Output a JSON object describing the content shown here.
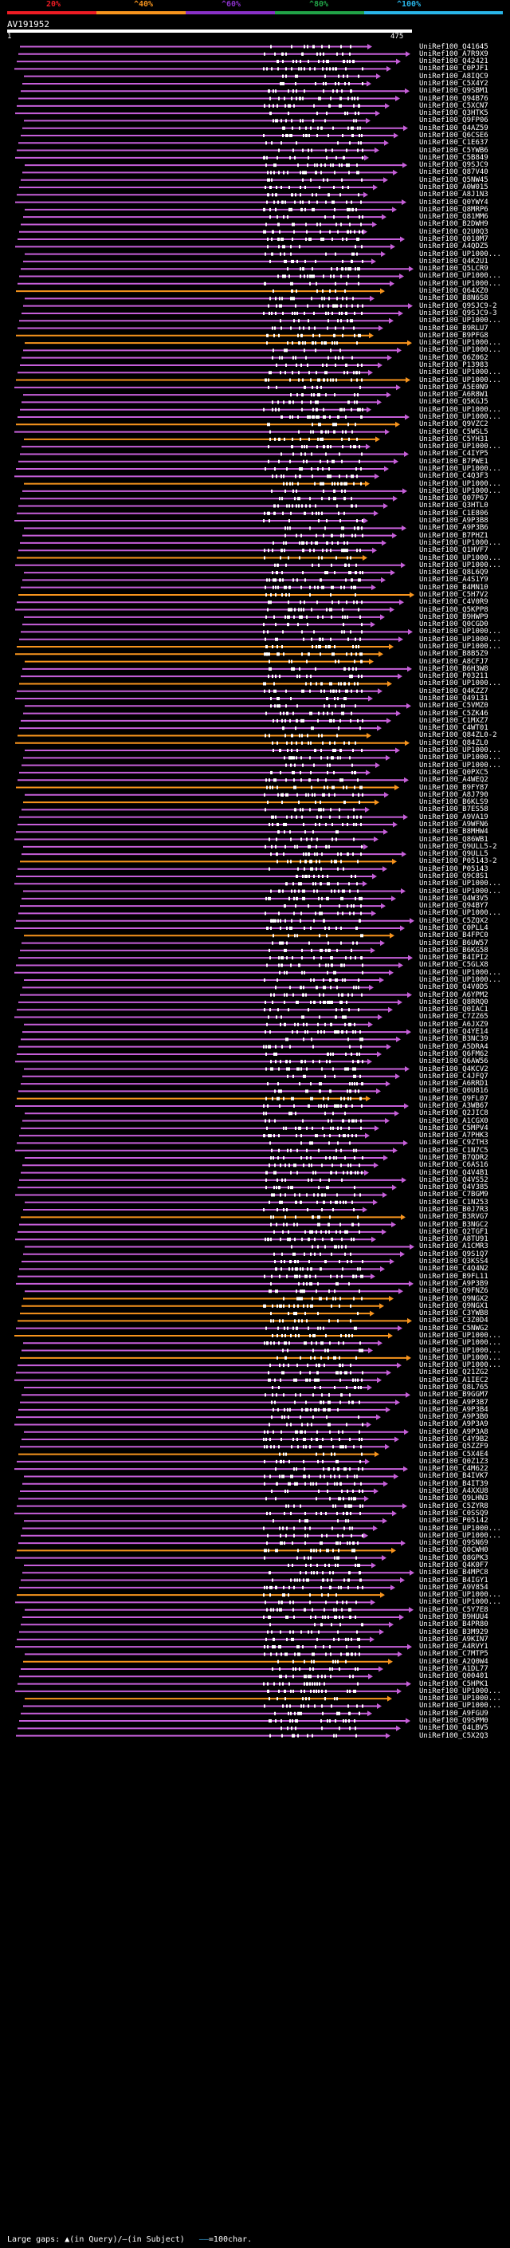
{
  "scale": {
    "labels": [
      "20%",
      "^40%",
      "^60%",
      "^80%",
      "^100%"
    ],
    "colors": [
      "#ee1c24",
      "#f7941d",
      "#8a31c8",
      "#21a347",
      "#29b5e8"
    ]
  },
  "query": {
    "id": "AV191952",
    "start": "1",
    "end": "475"
  },
  "hit_colors": {
    "purple": "#c65fd9",
    "orange": "#f7941d",
    "insert": "#ffffff"
  },
  "hits": [
    {
      "name": "UniRef100_Q41645",
      "color": "purple"
    },
    {
      "name": "UniRef100_A7R9X9",
      "color": "purple"
    },
    {
      "name": "UniRef100_Q42421",
      "color": "purple"
    },
    {
      "name": "UniRef100_C0PJF1",
      "color": "purple"
    },
    {
      "name": "UniRef100_A8IQC9",
      "color": "purple"
    },
    {
      "name": "UniRef100_C5X4Y2",
      "color": "purple"
    },
    {
      "name": "UniRef100_Q9SBM1",
      "color": "purple"
    },
    {
      "name": "UniRef100_Q94B76",
      "color": "purple"
    },
    {
      "name": "UniRef100_C5XCN7",
      "color": "purple"
    },
    {
      "name": "UniRef100_Q3HTK5",
      "color": "purple"
    },
    {
      "name": "UniRef100_Q9FP06",
      "color": "purple"
    },
    {
      "name": "UniRef100_Q4AZ59",
      "color": "purple"
    },
    {
      "name": "UniRef100_Q6CSE6",
      "color": "purple"
    },
    {
      "name": "UniRef100_C1E637",
      "color": "purple"
    },
    {
      "name": "UniRef100_C5YWB6",
      "color": "purple"
    },
    {
      "name": "UniRef100_C5B849",
      "color": "purple"
    },
    {
      "name": "UniRef100_Q9SJC9",
      "color": "purple"
    },
    {
      "name": "UniRef100_Q87V40",
      "color": "purple"
    },
    {
      "name": "UniRef100_Q5NW45",
      "color": "purple"
    },
    {
      "name": "UniRef100_A0W015",
      "color": "purple"
    },
    {
      "name": "UniRef100_A8J1N3",
      "color": "purple"
    },
    {
      "name": "UniRef100_Q0YWY4",
      "color": "purple"
    },
    {
      "name": "UniRef100_Q8MRP6",
      "color": "purple"
    },
    {
      "name": "UniRef100_Q81MM6",
      "color": "purple"
    },
    {
      "name": "UniRef100_B2DWH9",
      "color": "purple"
    },
    {
      "name": "UniRef100_Q2U0Q3",
      "color": "purple"
    },
    {
      "name": "UniRef100_Q010M7",
      "color": "purple"
    },
    {
      "name": "UniRef100_A4QDZ5",
      "color": "purple"
    },
    {
      "name": "UniRef100_UP1000...",
      "color": "purple"
    },
    {
      "name": "UniRef100_Q4K2U1",
      "color": "purple"
    },
    {
      "name": "UniRef100_Q5LCR9",
      "color": "purple"
    },
    {
      "name": "UniRef100_UP1000...",
      "color": "purple"
    },
    {
      "name": "UniRef100_UP1000...",
      "color": "purple"
    },
    {
      "name": "UniRef100_Q64XZ0",
      "color": "orange"
    },
    {
      "name": "UniRef100_B8N6S8",
      "color": "purple"
    },
    {
      "name": "UniRef100_Q9SJC9-2",
      "color": "purple"
    },
    {
      "name": "UniRef100_Q9SJC9-3",
      "color": "purple"
    },
    {
      "name": "UniRef100_UP1000...",
      "color": "purple"
    },
    {
      "name": "UniRef100_B9RLU7",
      "color": "purple"
    },
    {
      "name": "UniRef100_B9PFG8",
      "color": "orange"
    },
    {
      "name": "UniRef100_UP1000...",
      "color": "orange"
    },
    {
      "name": "UniRef100_UP1000...",
      "color": "purple"
    },
    {
      "name": "UniRef100_Q6Z062",
      "color": "purple"
    },
    {
      "name": "UniRef100_P13983",
      "color": "purple"
    },
    {
      "name": "UniRef100_UP1000...",
      "color": "purple"
    },
    {
      "name": "UniRef100_UP1000...",
      "color": "orange"
    },
    {
      "name": "UniRef100_A5E0N9",
      "color": "purple"
    },
    {
      "name": "UniRef100_A6R8W1",
      "color": "purple"
    },
    {
      "name": "UniRef100_Q5KGJ5",
      "color": "purple"
    },
    {
      "name": "UniRef100_UP1000...",
      "color": "purple"
    },
    {
      "name": "UniRef100_UP1000...",
      "color": "purple"
    },
    {
      "name": "UniRef100_Q9VZC2",
      "color": "orange"
    },
    {
      "name": "UniRef100_C5WSL5",
      "color": "purple"
    },
    {
      "name": "UniRef100_C5YH31",
      "color": "orange"
    },
    {
      "name": "UniRef100_UP1000...",
      "color": "purple"
    },
    {
      "name": "UniRef100_C4IYP5",
      "color": "purple"
    },
    {
      "name": "UniRef100_B7PWE1",
      "color": "purple"
    },
    {
      "name": "UniRef100_UP1000...",
      "color": "purple"
    },
    {
      "name": "UniRef100_C4Q3F3",
      "color": "purple"
    },
    {
      "name": "UniRef100_UP1000...",
      "color": "orange"
    },
    {
      "name": "UniRef100_UP1000...",
      "color": "purple"
    },
    {
      "name": "UniRef100_Q07P67",
      "color": "purple"
    },
    {
      "name": "UniRef100_Q3HTL0",
      "color": "purple"
    },
    {
      "name": "UniRef100_C1E806",
      "color": "purple"
    },
    {
      "name": "UniRef100_A9P3B8",
      "color": "purple"
    },
    {
      "name": "UniRef100_A9P3B6",
      "color": "purple"
    },
    {
      "name": "UniRef100_B7PHZ1",
      "color": "purple"
    },
    {
      "name": "UniRef100_UP1000...",
      "color": "purple"
    },
    {
      "name": "UniRef100_Q1HVF7",
      "color": "purple"
    },
    {
      "name": "UniRef100_UP1000...",
      "color": "orange"
    },
    {
      "name": "UniRef100_UP1000...",
      "color": "purple"
    },
    {
      "name": "UniRef100_Q8L6Q9",
      "color": "purple"
    },
    {
      "name": "UniRef100_A4S1Y9",
      "color": "purple"
    },
    {
      "name": "UniRef100_B4MN10",
      "color": "purple"
    },
    {
      "name": "UniRef100_C5H7V2",
      "color": "orange"
    },
    {
      "name": "UniRef100_C4V0R9",
      "color": "purple"
    },
    {
      "name": "UniRef100_Q5KPP8",
      "color": "purple"
    },
    {
      "name": "UniRef100_B9HWP9",
      "color": "purple"
    },
    {
      "name": "UniRef100_Q0CGD0",
      "color": "purple"
    },
    {
      "name": "UniRef100_UP1000...",
      "color": "purple"
    },
    {
      "name": "UniRef100_UP1000...",
      "color": "purple"
    },
    {
      "name": "UniRef100_UP1000...",
      "color": "orange"
    },
    {
      "name": "UniRef100_B8B5Z9",
      "color": "orange"
    },
    {
      "name": "UniRef100_A8CFJ7",
      "color": "orange"
    },
    {
      "name": "UniRef100_B6H3W8",
      "color": "purple"
    },
    {
      "name": "UniRef100_P03211",
      "color": "purple"
    },
    {
      "name": "UniRef100_UP1000...",
      "color": "orange"
    },
    {
      "name": "UniRef100_Q4KZZ7",
      "color": "purple"
    },
    {
      "name": "UniRef100_Q49131",
      "color": "purple"
    },
    {
      "name": "UniRef100_C5VMZ0",
      "color": "purple"
    },
    {
      "name": "UniRef100_C5ZK46",
      "color": "purple"
    },
    {
      "name": "UniRef100_C1MXZ7",
      "color": "purple"
    },
    {
      "name": "UniRef100_C4WT01",
      "color": "purple"
    },
    {
      "name": "UniRef100_Q84ZL0-2",
      "color": "orange"
    },
    {
      "name": "UniRef100_Q84ZL0",
      "color": "orange"
    },
    {
      "name": "UniRef100_UP1000...",
      "color": "purple"
    },
    {
      "name": "UniRef100_UP1000...",
      "color": "purple"
    },
    {
      "name": "UniRef100_UP1000...",
      "color": "purple"
    },
    {
      "name": "UniRef100_Q0PXC5",
      "color": "purple"
    },
    {
      "name": "UniRef100_A4WEQ2",
      "color": "purple"
    },
    {
      "name": "UniRef100_B9FY87",
      "color": "orange"
    },
    {
      "name": "UniRef100_A8J790",
      "color": "purple"
    },
    {
      "name": "UniRef100_B6KLS9",
      "color": "orange"
    },
    {
      "name": "UniRef100_B7ES58",
      "color": "purple"
    },
    {
      "name": "UniRef100_A9VA19",
      "color": "purple"
    },
    {
      "name": "UniRef100_A9WFN6",
      "color": "purple"
    },
    {
      "name": "UniRef100_B8MHW4",
      "color": "purple"
    },
    {
      "name": "UniRef100_Q86WB1",
      "color": "purple"
    },
    {
      "name": "UniRef100_Q9ULL5-2",
      "color": "purple"
    },
    {
      "name": "UniRef100_Q9ULL5",
      "color": "purple"
    },
    {
      "name": "UniRef100_P05143-2",
      "color": "orange"
    },
    {
      "name": "UniRef100_P05143",
      "color": "purple"
    },
    {
      "name": "UniRef100_Q9C8S1",
      "color": "purple"
    },
    {
      "name": "UniRef100_UP1000...",
      "color": "purple"
    },
    {
      "name": "UniRef100_UP1000...",
      "color": "purple"
    },
    {
      "name": "UniRef100_Q4W3V5",
      "color": "purple"
    },
    {
      "name": "UniRef100_Q94BY7",
      "color": "purple"
    },
    {
      "name": "UniRef100_UP1000...",
      "color": "purple"
    },
    {
      "name": "UniRef100_C5ZQX2",
      "color": "purple"
    },
    {
      "name": "UniRef100_C0PLL4",
      "color": "purple"
    },
    {
      "name": "UniRef100_B4FPC0",
      "color": "orange"
    },
    {
      "name": "UniRef100_B6UW57",
      "color": "purple"
    },
    {
      "name": "UniRef100_B6KG58",
      "color": "purple"
    },
    {
      "name": "UniRef100_B4IPI2",
      "color": "purple"
    },
    {
      "name": "UniRef100_C5GLX8",
      "color": "purple"
    },
    {
      "name": "UniRef100_UP1000...",
      "color": "purple"
    },
    {
      "name": "UniRef100_UP1000...",
      "color": "purple"
    },
    {
      "name": "UniRef100_Q4V0D5",
      "color": "purple"
    },
    {
      "name": "UniRef100_A6YPM2",
      "color": "purple"
    },
    {
      "name": "UniRef100_Q8RRQ0",
      "color": "purple"
    },
    {
      "name": "UniRef100_Q0IAC1",
      "color": "purple"
    },
    {
      "name": "UniRef100_C7ZZ65",
      "color": "purple"
    },
    {
      "name": "UniRef100_A6JXZ9",
      "color": "purple"
    },
    {
      "name": "UniRef100_Q4YE14",
      "color": "purple"
    },
    {
      "name": "UniRef100_B3NC39",
      "color": "purple"
    },
    {
      "name": "UniRef100_A5DRA4",
      "color": "purple"
    },
    {
      "name": "UniRef100_Q6FM62",
      "color": "purple"
    },
    {
      "name": "UniRef100_Q6AW56",
      "color": "purple"
    },
    {
      "name": "UniRef100_Q4KCV2",
      "color": "purple"
    },
    {
      "name": "UniRef100_C4JFQ7",
      "color": "purple"
    },
    {
      "name": "UniRef100_A6RRD1",
      "color": "purple"
    },
    {
      "name": "UniRef100_Q0U816",
      "color": "purple"
    },
    {
      "name": "UniRef100_Q9FL07",
      "color": "orange"
    },
    {
      "name": "UniRef100_A3WB67",
      "color": "purple"
    },
    {
      "name": "UniRef100_Q2JIC8",
      "color": "purple"
    },
    {
      "name": "UniRef100_A1CGX0",
      "color": "purple"
    },
    {
      "name": "UniRef100_C5MPV4",
      "color": "purple"
    },
    {
      "name": "UniRef100_A7PHK3",
      "color": "purple"
    },
    {
      "name": "UniRef100_C9ZTH3",
      "color": "purple"
    },
    {
      "name": "UniRef100_C1N7C5",
      "color": "purple"
    },
    {
      "name": "UniRef100_B7QDR2",
      "color": "purple"
    },
    {
      "name": "UniRef100_C6AS16",
      "color": "purple"
    },
    {
      "name": "UniRef100_Q4V4B1",
      "color": "purple"
    },
    {
      "name": "UniRef100_Q4VS52",
      "color": "purple"
    },
    {
      "name": "UniRef100_Q4V385",
      "color": "purple"
    },
    {
      "name": "UniRef100_C7BGM9",
      "color": "purple"
    },
    {
      "name": "UniRef100_C1N253",
      "color": "purple"
    },
    {
      "name": "UniRef100_B0J7R3",
      "color": "purple"
    },
    {
      "name": "UniRef100_B3RVG7",
      "color": "orange"
    },
    {
      "name": "UniRef100_B3NGC2",
      "color": "purple"
    },
    {
      "name": "UniRef100_Q2TGF1",
      "color": "purple"
    },
    {
      "name": "UniRef100_A8TU91",
      "color": "purple"
    },
    {
      "name": "UniRef100_A1CMR3",
      "color": "purple"
    },
    {
      "name": "UniRef100_Q9S1Q7",
      "color": "purple"
    },
    {
      "name": "UniRef100_Q3KSS4",
      "color": "purple"
    },
    {
      "name": "UniRef100_C4Q4N2",
      "color": "purple"
    },
    {
      "name": "UniRef100_B9FL11",
      "color": "purple"
    },
    {
      "name": "UniRef100_A9P3B9",
      "color": "purple"
    },
    {
      "name": "UniRef100_Q9FNZ6",
      "color": "purple"
    },
    {
      "name": "UniRef100_Q9NGX2",
      "color": "orange"
    },
    {
      "name": "UniRef100_Q9NGX1",
      "color": "orange"
    },
    {
      "name": "UniRef100_C3YWB8",
      "color": "orange"
    },
    {
      "name": "UniRef100_C3Z0D4",
      "color": "orange"
    },
    {
      "name": "UniRef100_C5NWG2",
      "color": "purple"
    },
    {
      "name": "UniRef100_UP1000...",
      "color": "orange"
    },
    {
      "name": "UniRef100_UP1000...",
      "color": "purple"
    },
    {
      "name": "UniRef100_UP1000...",
      "color": "purple"
    },
    {
      "name": "UniRef100_UP1000...",
      "color": "orange"
    },
    {
      "name": "UniRef100_UP1000...",
      "color": "purple"
    },
    {
      "name": "UniRef100_Q21ZG2",
      "color": "purple"
    },
    {
      "name": "UniRef100_A1IEC2",
      "color": "purple"
    },
    {
      "name": "UniRef100_Q8L765",
      "color": "purple"
    },
    {
      "name": "UniRef100_B9GGM7",
      "color": "purple"
    },
    {
      "name": "UniRef100_A9P3B7",
      "color": "purple"
    },
    {
      "name": "UniRef100_A9P3B4",
      "color": "purple"
    },
    {
      "name": "UniRef100_A9P3B0",
      "color": "purple"
    },
    {
      "name": "UniRef100_A9P3A9",
      "color": "purple"
    },
    {
      "name": "UniRef100_A9P3A8",
      "color": "purple"
    },
    {
      "name": "UniRef100_C4Y9B2",
      "color": "purple"
    },
    {
      "name": "UniRef100_Q5ZZF9",
      "color": "purple"
    },
    {
      "name": "UniRef100_C5X4E4",
      "color": "orange"
    },
    {
      "name": "UniRef100_Q0Z1Z3",
      "color": "purple"
    },
    {
      "name": "UniRef100_C4M622",
      "color": "purple"
    },
    {
      "name": "UniRef100_B4IVK7",
      "color": "purple"
    },
    {
      "name": "UniRef100_B4IT39",
      "color": "purple"
    },
    {
      "name": "UniRef100_A4XXU8",
      "color": "purple"
    },
    {
      "name": "UniRef100_Q9LHN3",
      "color": "purple"
    },
    {
      "name": "UniRef100_C5ZYR8",
      "color": "purple"
    },
    {
      "name": "UniRef100_C0SSQ9",
      "color": "purple"
    },
    {
      "name": "UniRef100_P05142",
      "color": "purple"
    },
    {
      "name": "UniRef100_UP1000...",
      "color": "purple"
    },
    {
      "name": "UniRef100_UP1000...",
      "color": "purple"
    },
    {
      "name": "UniRef100_Q9SN69",
      "color": "purple"
    },
    {
      "name": "UniRef100_Q0CWH0",
      "color": "orange"
    },
    {
      "name": "UniRef100_Q8GPK3",
      "color": "purple"
    },
    {
      "name": "UniRef100_Q4K0F7",
      "color": "purple"
    },
    {
      "name": "UniRef100_B4MPC8",
      "color": "purple"
    },
    {
      "name": "UniRef100_B4IGY1",
      "color": "purple"
    },
    {
      "name": "UniRef100_A9V854",
      "color": "purple"
    },
    {
      "name": "UniRef100_UP1000...",
      "color": "orange"
    },
    {
      "name": "UniRef100_UP1000...",
      "color": "purple"
    },
    {
      "name": "UniRef100_C5Y7E8",
      "color": "purple"
    },
    {
      "name": "UniRef100_B9HUU4",
      "color": "purple"
    },
    {
      "name": "UniRef100_B4PR80",
      "color": "purple"
    },
    {
      "name": "UniRef100_B3M929",
      "color": "purple"
    },
    {
      "name": "UniRef100_A9KIN7",
      "color": "purple"
    },
    {
      "name": "UniRef100_A4RVY1",
      "color": "purple"
    },
    {
      "name": "UniRef100_C7MTP5",
      "color": "purple"
    },
    {
      "name": "UniRef100_A2Q0W4",
      "color": "orange"
    },
    {
      "name": "UniRef100_A1DL77",
      "color": "purple"
    },
    {
      "name": "UniRef100_Q00401",
      "color": "purple"
    },
    {
      "name": "UniRef100_C5HPK1",
      "color": "purple"
    },
    {
      "name": "UniRef100_UP1000...",
      "color": "purple"
    },
    {
      "name": "UniRef100_UP1000...",
      "color": "orange"
    },
    {
      "name": "UniRef100_UP1000...",
      "color": "purple"
    },
    {
      "name": "UniRef100_A9FGU9",
      "color": "purple"
    },
    {
      "name": "UniRef100_Q9SPM0",
      "color": "purple"
    },
    {
      "name": "UniRef100_Q4LBV5",
      "color": "purple"
    },
    {
      "name": "UniRef100_C5X2Q3",
      "color": "purple"
    }
  ],
  "footer": {
    "prefix": "Large gaps: ",
    "query_symbol": "▲",
    "query_text": "(in Query)/",
    "subject_symbol": "—",
    "subject_text": "(in Subject)",
    "scale_symbol": "——",
    "scale_text": "=100char."
  }
}
